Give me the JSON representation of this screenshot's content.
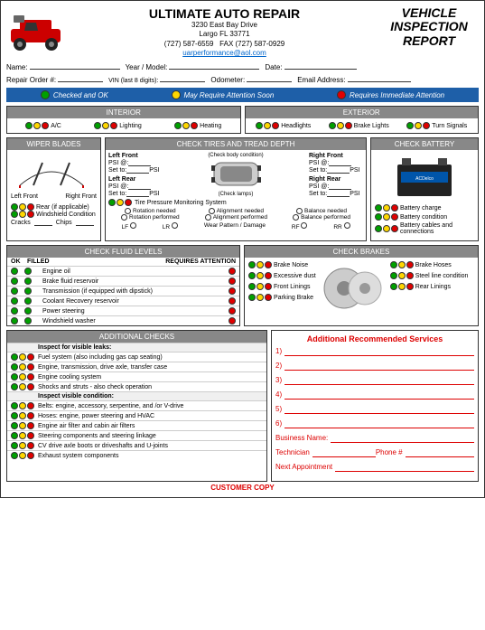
{
  "header": {
    "company": "ULTIMATE AUTO REPAIR",
    "addr1": "3230 East Bay Drive",
    "addr2": "Largo FL 33771",
    "phone": "(727) 587-6559",
    "fax": "FAX (727) 587-0929",
    "email": "uarperformance@aol.com",
    "report_title_1": "VEHICLE",
    "report_title_2": "INSPECTION",
    "report_title_3": "REPORT"
  },
  "form": {
    "name": "Name:",
    "year_model": "Year / Model:",
    "date": "Date:",
    "repair_order": "Repair Order #:",
    "vin": "VIN (last 8 digits):",
    "odometer": "Odometer:",
    "email": "Email Address:"
  },
  "legend": {
    "ok": "Checked and OK",
    "soon": "May Require Attention Soon",
    "now": "Requires Immediate Attention"
  },
  "interior": {
    "title": "INTERIOR",
    "items": [
      "A/C",
      "Lighting",
      "Heating"
    ]
  },
  "exterior": {
    "title": "EXTERIOR",
    "items": [
      "Headlights",
      "Brake Lights",
      "Turn Signals"
    ]
  },
  "wiper": {
    "title": "WIPER BLADES",
    "left": "Left Front",
    "right": "Right Front",
    "rear": "Rear (if applicable)",
    "windshield": "Windshield Condition",
    "cracks": "Cracks",
    "chips": "Chips"
  },
  "tires": {
    "title": "CHECK TIRES AND TREAD DEPTH",
    "lf": "Left Front",
    "rf": "Right Front",
    "lr": "Left Rear",
    "rr": "Right Rear",
    "body": "(Check body condition)",
    "lamps": "(Check lamps)",
    "psi": "PSI @:",
    "setto": "Set to:",
    "psi_unit": "PSI",
    "tpms": "Tire Pressure Monitoring System",
    "rot_need": "Rotation needed",
    "rot_perf": "Rotation performed",
    "align_need": "Alignment needed",
    "align_perf": "Alignment performed",
    "bal_need": "Balance needed",
    "bal_perf": "Balance performed",
    "wear": "Wear Pattern / Damage",
    "lf_s": "LF",
    "lr_s": "LR",
    "rf_s": "RF",
    "rr_s": "RR"
  },
  "battery": {
    "title": "CHECK BATTERY",
    "charge": "Battery charge",
    "condition": "Battery condition",
    "cables": "Battery cables and connections"
  },
  "fluids": {
    "title": "CHECK FLUID LEVELS",
    "ok": "OK",
    "filled": "FILLED",
    "req": "REQUIRES ATTENTION",
    "items": [
      "Engine oil",
      "Brake fluid reservoir",
      "Transmission (if equipped with dipstick)",
      "Coolant Recovery reservoir",
      "Power steering",
      "Windshield washer"
    ]
  },
  "brakes": {
    "title": "CHECK BRAKES",
    "noise": "Brake Noise",
    "dust": "Excessive dust",
    "front": "Front Linings",
    "parking": "Parking Brake",
    "hoses": "Brake Hoses",
    "steel": "Steel line condition",
    "rear": "Rear Linings"
  },
  "checks": {
    "title": "ADDITIONAL CHECKS",
    "leaks_hdr": "Inspect for visible leaks:",
    "cond_hdr": "Inspect visible condition:",
    "leak_items": [
      "Fuel system (also including gas cap seating)",
      "Engine, transmission, drive axle, transfer case",
      "Engine cooling system",
      "Shocks and struts - also check operation"
    ],
    "cond_items": [
      "Belts: engine, accessory, serpentine, and /or V-drive",
      "Hoses: engine, power steering and HVAC",
      "Engine air filter and cabin air filters",
      "Steering components and steering linkage",
      "CV drive axle boots or driveshafts and U-joints",
      "Exhaust system components"
    ]
  },
  "services": {
    "title": "Additional Recommended Services",
    "nums": [
      "1)",
      "2)",
      "3)",
      "4)",
      "5)",
      "6)"
    ],
    "business": "Business Name:",
    "tech": "Technician",
    "phone": "Phone #",
    "next": "Next Appointment"
  },
  "footer": "CUSTOMER COPY",
  "colors": {
    "green": "#00a000",
    "yellow": "#ffd700",
    "red": "#e00000",
    "blue": "#1e5fa8",
    "gray": "#888888"
  }
}
